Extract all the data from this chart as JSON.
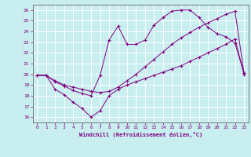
{
  "xlabel": "Windchill (Refroidissement éolien,°C)",
  "background_color": "#c8eef0",
  "line_color": "#800080",
  "grid_color": "#ffffff",
  "xlim": [
    -0.5,
    23.5
  ],
  "ylim": [
    15.5,
    26.5
  ],
  "xticks": [
    0,
    1,
    2,
    3,
    4,
    5,
    6,
    7,
    8,
    9,
    10,
    11,
    12,
    13,
    14,
    15,
    16,
    17,
    18,
    19,
    20,
    21,
    22,
    23
  ],
  "yticks": [
    16,
    17,
    18,
    19,
    20,
    21,
    22,
    23,
    24,
    25,
    26
  ],
  "line1_x": [
    0,
    1,
    2,
    3,
    4,
    5,
    6,
    7,
    8,
    9,
    10,
    11,
    12,
    13,
    14,
    15,
    16,
    17,
    18,
    19,
    20,
    21,
    22,
    23
  ],
  "line1_y": [
    19.9,
    19.9,
    18.6,
    18.1,
    17.4,
    16.8,
    16.0,
    16.6,
    18.0,
    18.6,
    19.0,
    19.3,
    19.6,
    19.9,
    20.2,
    20.5,
    20.8,
    21.2,
    21.6,
    22.0,
    22.4,
    22.8,
    23.3,
    20.0
  ],
  "line2_x": [
    0,
    1,
    2,
    3,
    4,
    5,
    6,
    7,
    8,
    9,
    10,
    11,
    12,
    13,
    14,
    15,
    16,
    17,
    18,
    19,
    20,
    21,
    22,
    23
  ],
  "line2_y": [
    19.9,
    19.9,
    19.4,
    19.0,
    18.8,
    18.6,
    18.4,
    18.3,
    18.4,
    18.8,
    19.4,
    20.0,
    20.7,
    21.4,
    22.1,
    22.8,
    23.4,
    23.9,
    24.4,
    24.8,
    25.2,
    25.6,
    25.9,
    20.1
  ],
  "line3_x": [
    0,
    1,
    2,
    3,
    4,
    5,
    6,
    7,
    8,
    9,
    10,
    11,
    12,
    13,
    14,
    15,
    16,
    17,
    18,
    19,
    20,
    21,
    22,
    23
  ],
  "line3_y": [
    19.9,
    19.9,
    19.3,
    18.9,
    18.5,
    18.2,
    18.0,
    19.9,
    23.2,
    24.5,
    22.8,
    22.8,
    23.2,
    24.6,
    25.3,
    25.9,
    26.0,
    26.0,
    25.3,
    24.4,
    23.8,
    23.5,
    22.9,
    20.1
  ]
}
